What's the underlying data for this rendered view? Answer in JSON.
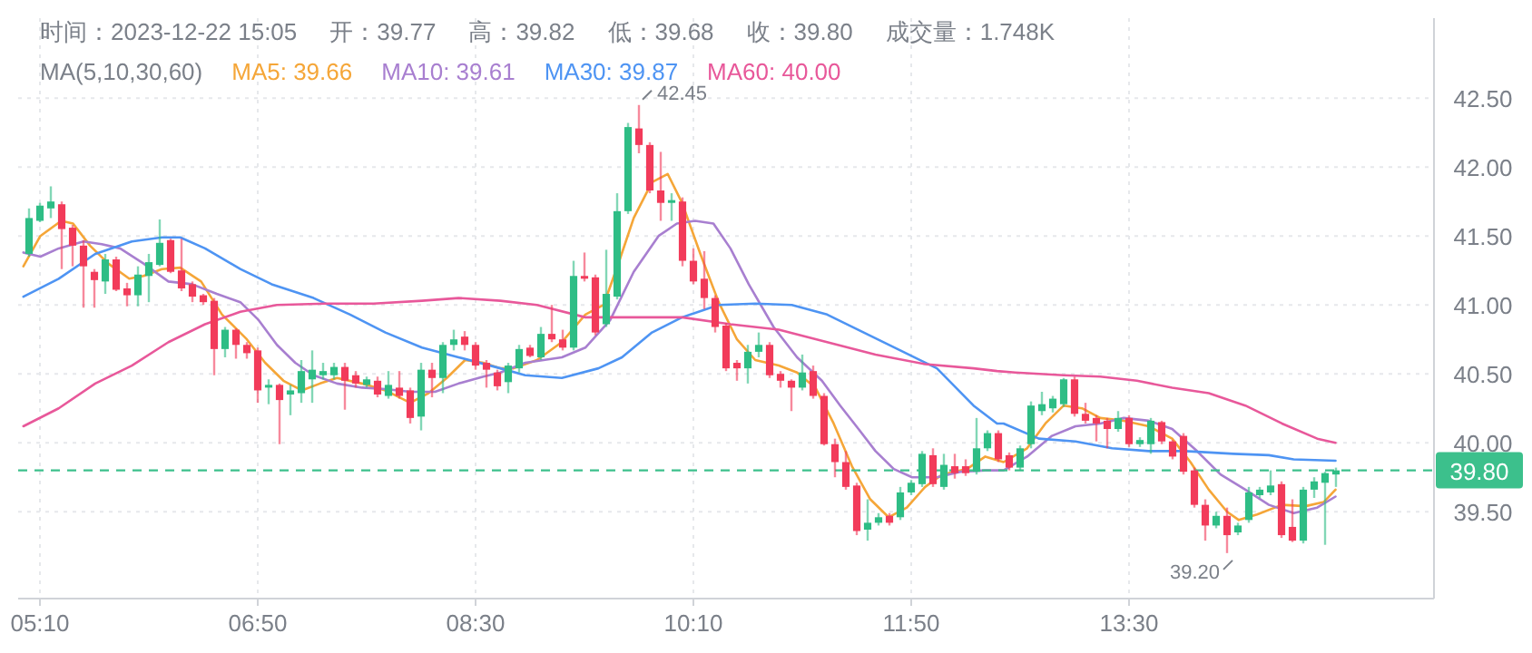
{
  "chart_data": {
    "type": "candlestick",
    "annotations": [
      "时间：2023-12-22 15:05",
      "开：39.77",
      "高：39.82",
      "低：39.68",
      "收：39.80",
      "成交量：1.748K",
      {
        "text": "42.45",
        "x": 9.75,
        "y": 42.45
      },
      {
        "text": "39.20",
        "x": 14.25,
        "y": 39.2
      }
    ],
    "legend_title": "MA(5,10,30,60)",
    "legend": "top",
    "grid": true,
    "xlim": [
      5.0,
      15.8333
    ],
    "xticks": [
      {
        "value": 5.1667,
        "label": "05:10"
      },
      {
        "value": 6.8333,
        "label": "06:50"
      },
      {
        "value": 8.5,
        "label": "08:30"
      },
      {
        "value": 10.1667,
        "label": "10:10"
      },
      {
        "value": 11.8333,
        "label": "11:50"
      },
      {
        "value": 13.5,
        "label": "13:30"
      }
    ],
    "ylim": [
      38.87,
      43.08
    ],
    "yticks": [
      {
        "value": 39.5,
        "label": "39.50"
      },
      {
        "value": 40,
        "label": "40.00"
      },
      {
        "value": 40.5,
        "label": "40.50"
      },
      {
        "value": 41,
        "label": "41.00"
      },
      {
        "value": 41.5,
        "label": "41.50"
      },
      {
        "value": 42,
        "label": "42.00"
      },
      {
        "value": 42.5,
        "label": "42.50"
      }
    ],
    "ref_lines": [
      {
        "axis": "y",
        "value": 39.8,
        "label": "39.80",
        "color": "#3cc08c",
        "line_style": "dashed"
      }
    ],
    "x": [
      5.0833,
      5.1667,
      5.25,
      5.3333,
      5.4167,
      5.5,
      5.5833,
      5.6667,
      5.75,
      5.8333,
      5.9167,
      6,
      6.0833,
      6.1667,
      6.25,
      6.3333,
      6.4167,
      6.5,
      6.5833,
      6.6667,
      6.75,
      6.8333,
      6.9167,
      7,
      7.0833,
      7.1667,
      7.25,
      7.3333,
      7.4167,
      7.5,
      7.5833,
      7.6667,
      7.75,
      7.8333,
      7.9167,
      8,
      8.0833,
      8.1667,
      8.25,
      8.3333,
      8.4167,
      8.5,
      8.5833,
      8.6667,
      8.75,
      8.8333,
      8.9167,
      9,
      9.0833,
      9.1667,
      9.25,
      9.3333,
      9.4167,
      9.5,
      9.5833,
      9.6667,
      9.75,
      9.8333,
      9.9167,
      10,
      10.0833,
      10.1667,
      10.25,
      10.3333,
      10.4167,
      10.5,
      10.5833,
      10.6667,
      10.75,
      10.8333,
      10.9167,
      11,
      11.0833,
      11.1667,
      11.25,
      11.3333,
      11.4167,
      11.5,
      11.5833,
      11.6667,
      11.75,
      11.8333,
      11.9167,
      12,
      12.0833,
      12.1667,
      12.25,
      12.3333,
      12.4167,
      12.5,
      12.5833,
      12.6667,
      12.75,
      12.8333,
      12.9167,
      13,
      13.0833,
      13.1667,
      13.25,
      13.3333,
      13.4167,
      13.5,
      13.5833,
      13.6667,
      13.75,
      13.8333,
      13.9167,
      14,
      14.0833,
      14.1667,
      14.25,
      14.3333,
      14.4167,
      14.5,
      14.5833,
      14.6667,
      14.75,
      14.8333,
      14.9167,
      15,
      15.0833
    ],
    "ohlc": [
      [
        41.37,
        41.7,
        41.35,
        41.63
      ],
      [
        41.61,
        41.74,
        41.6,
        41.72
      ],
      [
        41.7,
        41.86,
        41.63,
        41.75
      ],
      [
        41.73,
        41.75,
        41.26,
        41.55
      ],
      [
        41.56,
        41.58,
        41.28,
        41.43
      ],
      [
        41.43,
        41.47,
        40.98,
        41.28
      ],
      [
        41.24,
        41.26,
        40.98,
        41.18
      ],
      [
        41.17,
        41.37,
        41.08,
        41.33
      ],
      [
        41.33,
        41.35,
        41.1,
        41.11
      ],
      [
        41.12,
        41.16,
        40.99,
        41.07
      ],
      [
        41.07,
        41.28,
        40.99,
        41.22
      ],
      [
        41.21,
        41.37,
        41.02,
        41.31
      ],
      [
        41.29,
        41.62,
        41.28,
        41.45
      ],
      [
        41.47,
        41.48,
        41.23,
        41.24
      ],
      [
        41.25,
        41.48,
        41.1,
        41.12
      ],
      [
        41.15,
        41.17,
        41.02,
        41.06
      ],
      [
        41.07,
        41.08,
        41.0,
        41.02
      ],
      [
        41.03,
        41.05,
        40.49,
        40.68
      ],
      [
        40.68,
        40.84,
        40.62,
        40.82
      ],
      [
        40.82,
        40.83,
        40.61,
        40.71
      ],
      [
        40.71,
        40.73,
        40.61,
        40.65
      ],
      [
        40.67,
        40.69,
        40.29,
        40.38
      ],
      [
        40.4,
        40.46,
        40.28,
        40.42
      ],
      [
        40.42,
        40.43,
        39.99,
        40.31
      ],
      [
        40.35,
        40.42,
        40.2,
        40.38
      ],
      [
        40.36,
        40.6,
        40.29,
        40.52
      ],
      [
        40.46,
        40.67,
        40.29,
        40.53
      ],
      [
        40.49,
        40.58,
        40.46,
        40.52
      ],
      [
        40.49,
        40.58,
        40.46,
        40.55
      ],
      [
        40.55,
        40.58,
        40.24,
        40.45
      ],
      [
        40.49,
        40.52,
        40.4,
        40.43
      ],
      [
        40.42,
        40.48,
        40.4,
        40.46
      ],
      [
        40.45,
        40.48,
        40.33,
        40.35
      ],
      [
        40.34,
        40.52,
        40.32,
        40.42
      ],
      [
        40.4,
        40.52,
        40.32,
        40.34
      ],
      [
        40.38,
        40.4,
        40.14,
        40.18
      ],
      [
        40.19,
        40.58,
        40.09,
        40.53
      ],
      [
        40.53,
        40.58,
        40.33,
        40.47
      ],
      [
        40.47,
        40.73,
        40.36,
        40.71
      ],
      [
        40.71,
        40.82,
        40.67,
        40.75
      ],
      [
        40.77,
        40.81,
        40.67,
        40.71
      ],
      [
        40.71,
        40.73,
        40.53,
        40.56
      ],
      [
        40.58,
        40.6,
        40.4,
        40.53
      ],
      [
        40.51,
        40.53,
        40.38,
        40.41
      ],
      [
        40.44,
        40.58,
        40.36,
        40.56
      ],
      [
        40.54,
        40.71,
        40.51,
        40.68
      ],
      [
        40.69,
        40.71,
        40.62,
        40.63
      ],
      [
        40.62,
        40.84,
        40.6,
        40.79
      ],
      [
        40.79,
        41.0,
        40.73,
        40.75
      ],
      [
        40.75,
        40.82,
        40.67,
        40.69
      ],
      [
        40.69,
        41.32,
        40.67,
        41.21
      ],
      [
        41.21,
        41.38,
        41.17,
        41.19
      ],
      [
        41.2,
        41.22,
        40.78,
        40.8
      ],
      [
        40.86,
        41.4,
        40.84,
        41.08
      ],
      [
        41.06,
        41.81,
        41.04,
        41.68
      ],
      [
        41.68,
        42.32,
        41.66,
        42.29
      ],
      [
        42.28,
        42.45,
        42.1,
        42.16
      ],
      [
        42.16,
        42.18,
        41.81,
        41.83
      ],
      [
        41.83,
        42.11,
        41.61,
        41.74
      ],
      [
        41.74,
        41.81,
        41.61,
        41.76
      ],
      [
        41.75,
        41.78,
        41.28,
        41.32
      ],
      [
        41.32,
        41.41,
        41.15,
        41.17
      ],
      [
        41.19,
        41.39,
        40.97,
        41.05
      ],
      [
        41.05,
        41.07,
        40.8,
        40.84
      ],
      [
        40.85,
        40.87,
        40.52,
        40.54
      ],
      [
        40.58,
        40.6,
        40.45,
        40.54
      ],
      [
        40.54,
        40.71,
        40.43,
        40.66
      ],
      [
        40.66,
        40.8,
        40.62,
        40.71
      ],
      [
        40.71,
        40.73,
        40.47,
        40.49
      ],
      [
        40.5,
        40.52,
        40.4,
        40.45
      ],
      [
        40.45,
        40.46,
        40.23,
        40.4
      ],
      [
        40.4,
        40.64,
        40.38,
        40.51
      ],
      [
        40.52,
        40.56,
        40.32,
        40.34
      ],
      [
        40.34,
        40.36,
        39.98,
        39.99
      ],
      [
        39.99,
        40.03,
        39.75,
        39.86
      ],
      [
        39.86,
        39.94,
        39.66,
        39.68
      ],
      [
        39.69,
        39.71,
        39.33,
        39.36
      ],
      [
        39.37,
        39.59,
        39.29,
        39.42
      ],
      [
        39.42,
        39.49,
        39.4,
        39.46
      ],
      [
        39.47,
        39.49,
        39.4,
        39.42
      ],
      [
        39.46,
        39.68,
        39.44,
        39.64
      ],
      [
        39.64,
        39.73,
        39.62,
        39.71
      ],
      [
        39.7,
        39.94,
        39.68,
        39.92
      ],
      [
        39.91,
        39.96,
        39.68,
        39.7
      ],
      [
        39.68,
        39.92,
        39.66,
        39.84
      ],
      [
        39.83,
        39.92,
        39.74,
        39.78
      ],
      [
        39.83,
        39.88,
        39.76,
        39.78
      ],
      [
        39.79,
        40.18,
        39.77,
        39.96
      ],
      [
        39.96,
        40.09,
        39.94,
        40.07
      ],
      [
        40.07,
        40.09,
        39.86,
        39.88
      ],
      [
        39.91,
        39.93,
        39.8,
        39.82
      ],
      [
        39.82,
        39.98,
        39.8,
        39.96
      ],
      [
        39.99,
        40.3,
        39.96,
        40.27
      ],
      [
        40.23,
        40.37,
        40.2,
        40.28
      ],
      [
        40.25,
        40.34,
        40.22,
        40.32
      ],
      [
        40.28,
        40.47,
        40.26,
        40.46
      ],
      [
        40.46,
        40.48,
        40.19,
        40.21
      ],
      [
        40.21,
        40.29,
        40.14,
        40.16
      ],
      [
        40.18,
        40.2,
        40.01,
        40.14
      ],
      [
        40.16,
        40.18,
        39.96,
        40.1
      ],
      [
        40.1,
        40.23,
        40.08,
        40.18
      ],
      [
        40.18,
        40.2,
        39.97,
        39.99
      ],
      [
        39.99,
        40.04,
        39.97,
        40.02
      ],
      [
        39.99,
        40.18,
        39.92,
        40.16
      ],
      [
        40.15,
        40.16,
        39.99,
        40.01
      ],
      [
        40.01,
        40.02,
        39.88,
        39.9
      ],
      [
        40.05,
        40.07,
        39.77,
        39.79
      ],
      [
        39.8,
        39.82,
        39.53,
        39.55
      ],
      [
        39.55,
        39.59,
        39.29,
        39.4
      ],
      [
        39.4,
        39.5,
        39.38,
        39.47
      ],
      [
        39.47,
        39.53,
        39.2,
        39.33
      ],
      [
        39.35,
        39.42,
        39.33,
        39.4
      ],
      [
        39.44,
        39.68,
        39.42,
        39.64
      ],
      [
        39.62,
        39.68,
        39.6,
        39.66
      ],
      [
        39.64,
        39.8,
        39.62,
        39.69
      ],
      [
        39.7,
        39.72,
        39.31,
        39.33
      ],
      [
        39.39,
        39.59,
        39.28,
        39.29
      ],
      [
        39.29,
        39.68,
        39.27,
        39.66
      ],
      [
        39.66,
        39.75,
        39.6,
        39.72
      ],
      [
        39.71,
        39.79,
        39.26,
        39.78
      ],
      [
        39.77,
        39.82,
        39.68,
        39.8
      ]
    ],
    "series": [
      {
        "name": "MA5: 39.66",
        "type": "line",
        "color": "#f5a638",
        "x": [
          5.04,
          5.17,
          5.33,
          5.42,
          5.55,
          5.69,
          5.85,
          5.96,
          6.1,
          6.24,
          6.4,
          6.56,
          6.75,
          6.89,
          7.03,
          7.17,
          7.31,
          7.44,
          7.63,
          7.81,
          8.0,
          8.14,
          8.28,
          8.42,
          8.56,
          8.69,
          8.79,
          8.97,
          9.16,
          9.34,
          9.48,
          9.6,
          9.71,
          9.85,
          9.97,
          10.08,
          10.22,
          10.36,
          10.5,
          10.64,
          10.82,
          10.96,
          11.1,
          11.24,
          11.38,
          11.52,
          11.66,
          11.8,
          11.94,
          12.07,
          12.26,
          12.4,
          12.54,
          12.72,
          12.86,
          13.0,
          13.14,
          13.28,
          13.46,
          13.65,
          13.83,
          13.97,
          14.11,
          14.25,
          14.34,
          14.48,
          14.67,
          14.85,
          14.99,
          15.08
        ],
        "values": [
          41.28,
          41.5,
          41.61,
          41.59,
          41.43,
          41.3,
          41.19,
          41.21,
          41.26,
          41.27,
          41.17,
          40.93,
          40.75,
          40.58,
          40.45,
          40.38,
          40.43,
          40.47,
          40.43,
          40.38,
          40.29,
          40.36,
          40.47,
          40.6,
          40.58,
          40.54,
          40.54,
          40.6,
          40.73,
          40.93,
          41.0,
          41.32,
          41.63,
          41.89,
          41.95,
          41.74,
          41.37,
          41.02,
          40.75,
          40.6,
          40.56,
          40.51,
          40.4,
          40.14,
          39.83,
          39.59,
          39.46,
          39.53,
          39.68,
          39.77,
          39.81,
          39.9,
          39.86,
          39.96,
          40.14,
          40.27,
          40.25,
          40.18,
          40.16,
          40.12,
          40.03,
          39.86,
          39.66,
          39.5,
          39.44,
          39.48,
          39.55,
          39.54,
          39.57,
          39.66
        ]
      },
      {
        "name": "MA10: 39.61",
        "type": "line",
        "color": "#a87fd0",
        "x": [
          5.04,
          5.17,
          5.31,
          5.5,
          5.64,
          5.78,
          5.96,
          6.15,
          6.33,
          6.52,
          6.7,
          6.84,
          6.98,
          7.12,
          7.26,
          7.44,
          7.63,
          7.81,
          8.0,
          8.19,
          8.37,
          8.56,
          8.69,
          8.88,
          9.16,
          9.34,
          9.53,
          9.71,
          9.9,
          10.04,
          10.18,
          10.32,
          10.45,
          10.59,
          10.78,
          10.96,
          11.15,
          11.29,
          11.43,
          11.56,
          11.7,
          11.84,
          12.03,
          12.21,
          12.4,
          12.54,
          12.72,
          12.91,
          13.09,
          13.28,
          13.46,
          13.65,
          13.83,
          14.02,
          14.2,
          14.39,
          14.57,
          14.76,
          14.94,
          15.08
        ],
        "values": [
          41.38,
          41.35,
          41.41,
          41.46,
          41.44,
          41.41,
          41.3,
          41.17,
          41.15,
          41.08,
          41.02,
          40.89,
          40.71,
          40.58,
          40.49,
          40.43,
          40.4,
          40.39,
          40.37,
          40.37,
          40.43,
          40.48,
          40.51,
          40.58,
          40.62,
          40.69,
          40.89,
          41.24,
          41.5,
          41.59,
          41.61,
          41.59,
          41.41,
          41.15,
          40.84,
          40.62,
          40.45,
          40.27,
          40.1,
          39.94,
          39.81,
          39.75,
          39.75,
          39.79,
          39.8,
          39.8,
          39.9,
          40.05,
          40.12,
          40.14,
          40.18,
          40.16,
          40.1,
          39.94,
          39.77,
          39.66,
          39.55,
          39.49,
          39.53,
          39.61
        ]
      },
      {
        "name": "MA30: 39.87",
        "type": "line",
        "color": "#4e94f3",
        "x": [
          5.04,
          5.31,
          5.59,
          5.87,
          6.1,
          6.24,
          6.43,
          6.7,
          6.94,
          7.26,
          7.54,
          7.81,
          8.09,
          8.37,
          8.69,
          8.88,
          9.16,
          9.44,
          9.62,
          9.85,
          10.08,
          10.36,
          10.64,
          10.92,
          11.19,
          11.47,
          11.75,
          12.03,
          12.31,
          12.49,
          12.54,
          12.81,
          13.09,
          13.37,
          13.65,
          13.93,
          14.3,
          14.57,
          14.76,
          15.08
        ],
        "values": [
          41.06,
          41.19,
          41.37,
          41.46,
          41.49,
          41.49,
          41.41,
          41.26,
          41.15,
          41.05,
          40.93,
          40.8,
          40.69,
          40.62,
          40.54,
          40.49,
          40.47,
          40.54,
          40.62,
          40.8,
          40.91,
          41.0,
          41.01,
          41.0,
          40.93,
          40.8,
          40.67,
          40.54,
          40.27,
          40.14,
          40.14,
          40.03,
          40.01,
          39.96,
          39.94,
          39.94,
          39.92,
          39.91,
          39.88,
          39.87
        ]
      },
      {
        "name": "MA60: 40.00",
        "type": "line",
        "color": "#e8589a",
        "x": [
          5.04,
          5.31,
          5.59,
          5.87,
          6.15,
          6.43,
          6.7,
          6.98,
          7.35,
          7.72,
          8.09,
          8.37,
          8.69,
          8.97,
          9.34,
          9.71,
          10.08,
          10.45,
          10.82,
          11.19,
          11.56,
          11.94,
          12.31,
          12.49,
          12.63,
          13.0,
          13.28,
          13.56,
          13.83,
          14.11,
          14.39,
          14.67,
          14.94,
          15.08
        ],
        "values": [
          40.12,
          40.25,
          40.43,
          40.56,
          40.73,
          40.86,
          40.95,
          41.0,
          41.01,
          41.01,
          41.03,
          41.05,
          41.03,
          41.0,
          40.91,
          40.91,
          40.91,
          40.86,
          40.82,
          40.73,
          40.64,
          40.57,
          40.54,
          40.52,
          40.51,
          40.49,
          40.48,
          40.45,
          40.4,
          40.36,
          40.27,
          40.14,
          40.03,
          40.0
        ]
      }
    ]
  }
}
